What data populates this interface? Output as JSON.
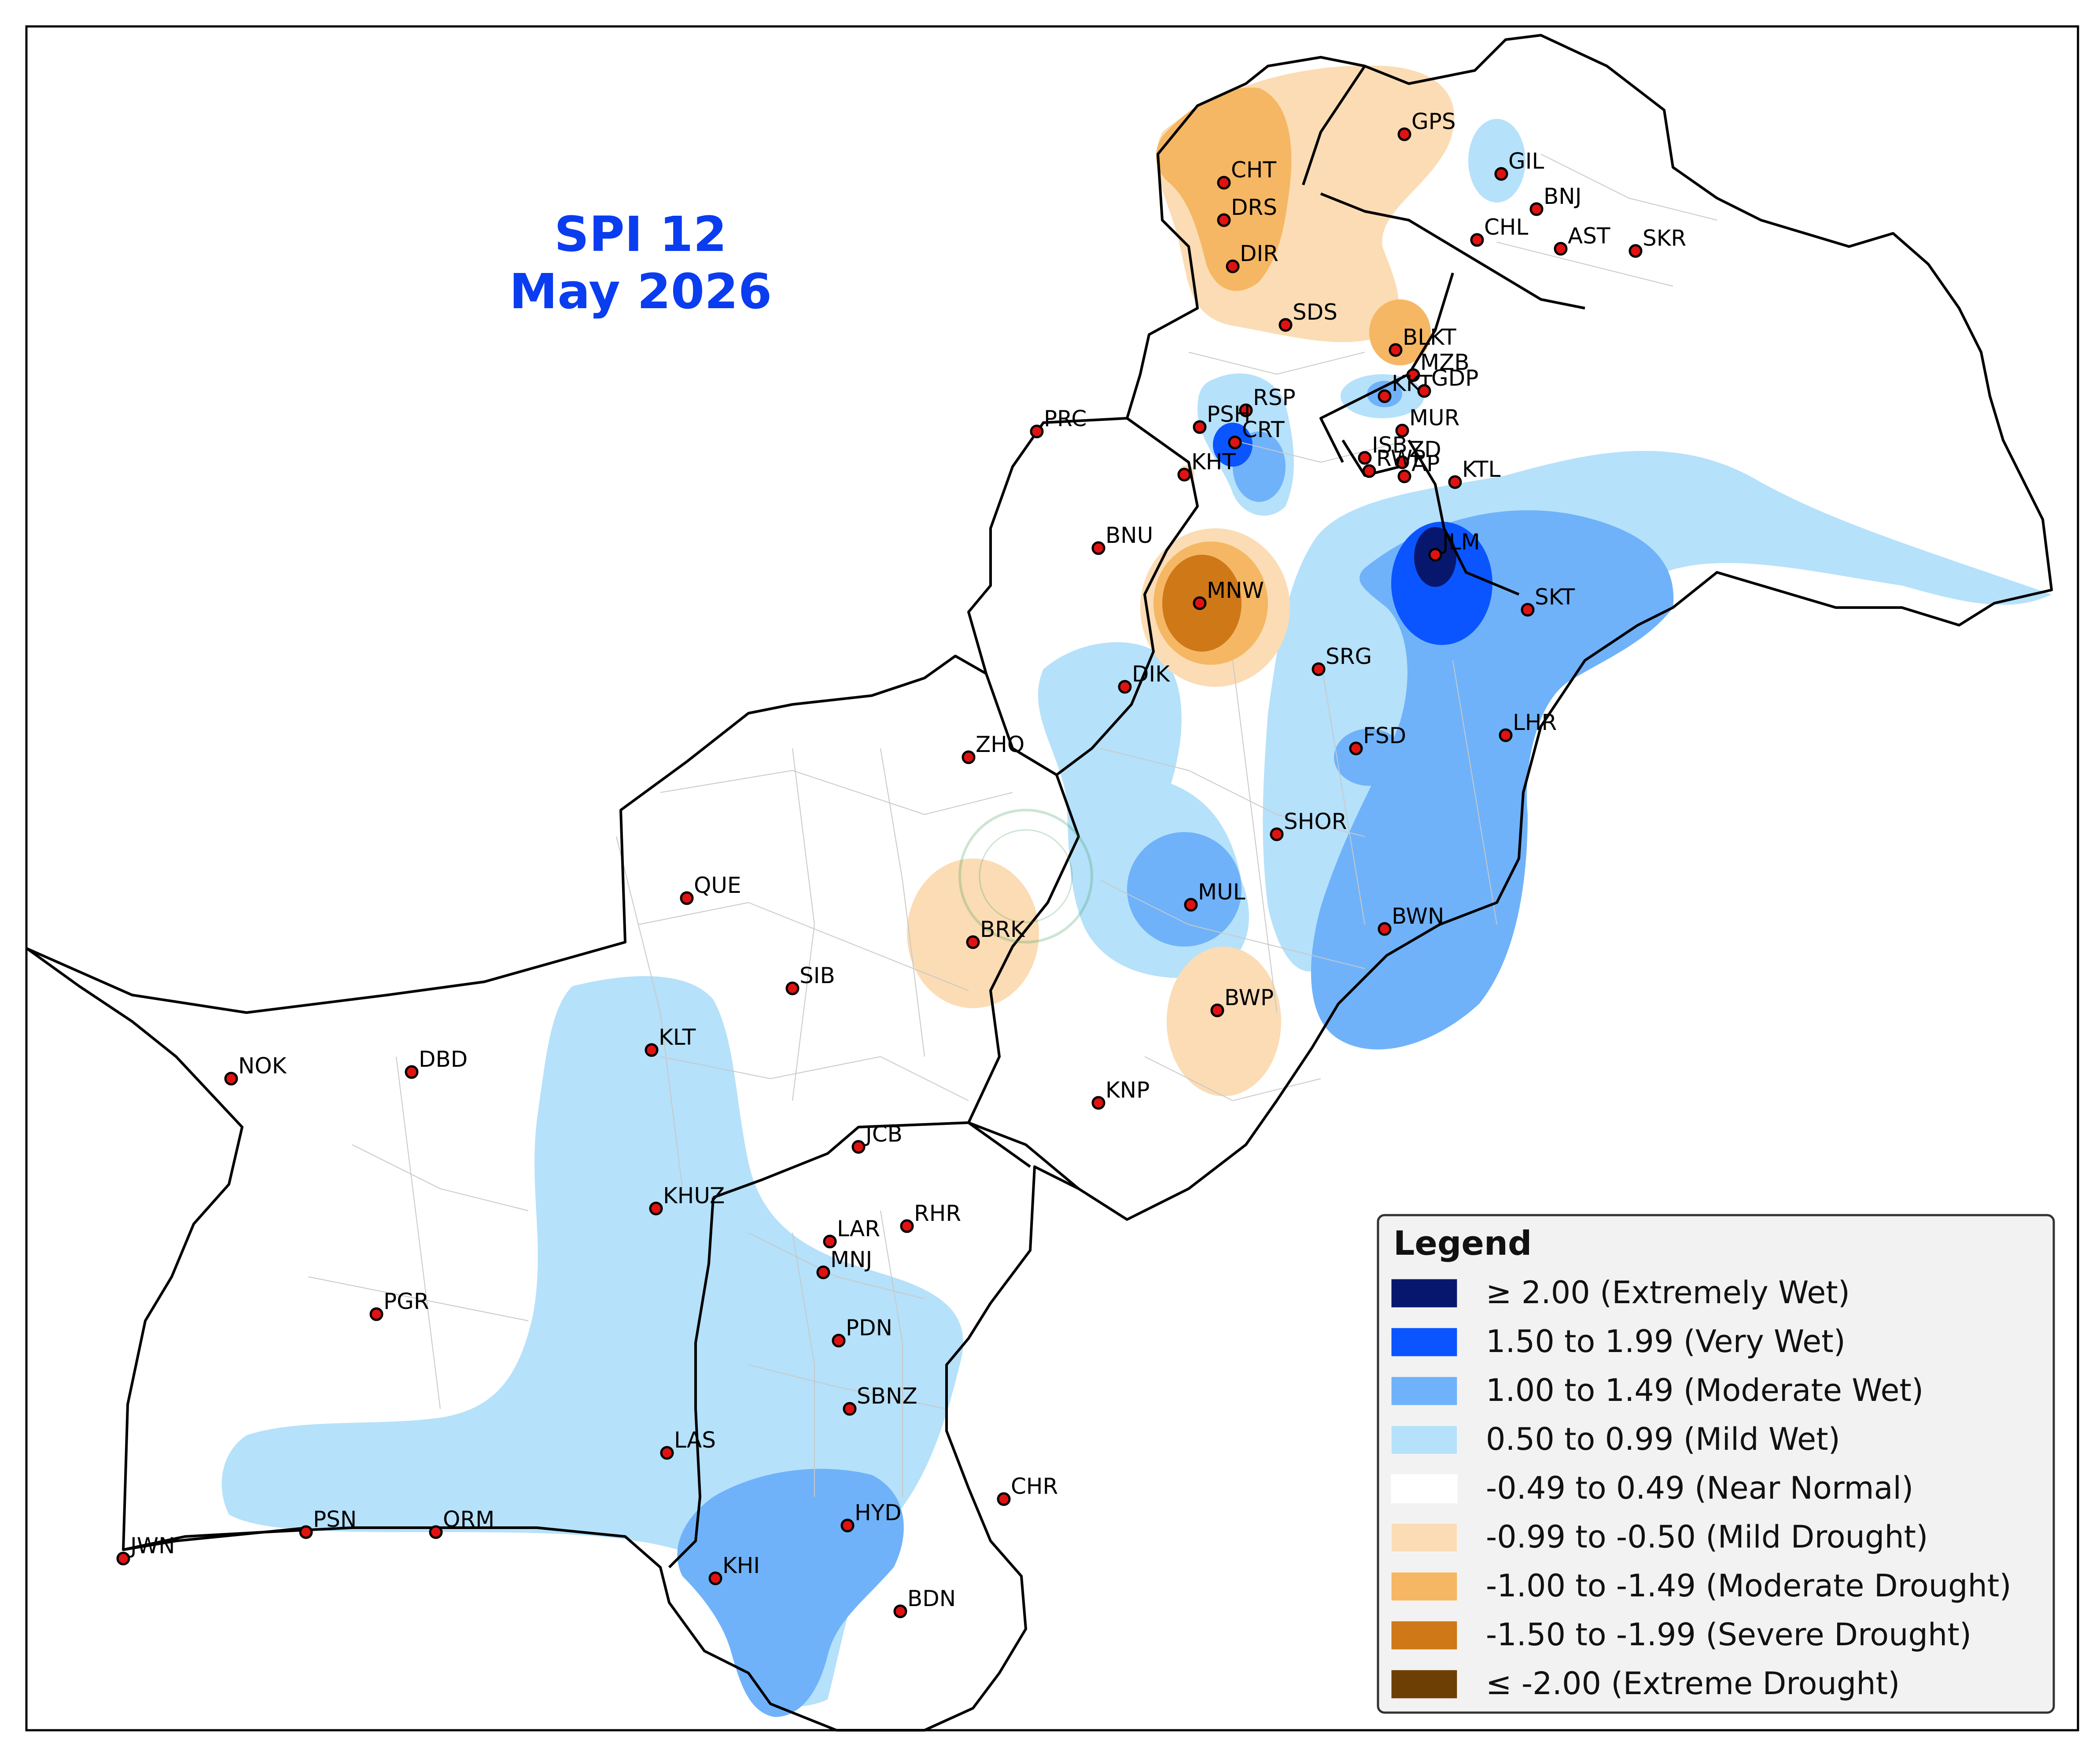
{
  "map": {
    "title": "SPI 12",
    "subtitle": "May 2026",
    "stations": [
      {
        "code": "GPS"
      },
      {
        "code": "GIL"
      },
      {
        "code": "CHT"
      },
      {
        "code": "BNJ"
      },
      {
        "code": "DRS"
      },
      {
        "code": "CHL"
      },
      {
        "code": "AST"
      },
      {
        "code": "SKR"
      },
      {
        "code": "DIR"
      },
      {
        "code": "SDS"
      },
      {
        "code": "BLKT"
      },
      {
        "code": "MZB"
      },
      {
        "code": "RSP"
      },
      {
        "code": "KKT"
      },
      {
        "code": "GDP"
      },
      {
        "code": "PRC"
      },
      {
        "code": "PSH"
      },
      {
        "code": "MUR"
      },
      {
        "code": "CRT"
      },
      {
        "code": "ISB"
      },
      {
        "code": "ZD"
      },
      {
        "code": "KHT"
      },
      {
        "code": "RWP"
      },
      {
        "code": "AP"
      },
      {
        "code": "KTL"
      },
      {
        "code": "BNU"
      },
      {
        "code": "JLM"
      },
      {
        "code": "MNW"
      },
      {
        "code": "SKT"
      },
      {
        "code": "SRG"
      },
      {
        "code": "DIK"
      },
      {
        "code": "LHR"
      },
      {
        "code": "ZHO"
      },
      {
        "code": "FSD"
      },
      {
        "code": "SHOR"
      },
      {
        "code": "QUE"
      },
      {
        "code": "MUL"
      },
      {
        "code": "BRK"
      },
      {
        "code": "BWN"
      },
      {
        "code": "SIB"
      },
      {
        "code": "BWP"
      },
      {
        "code": "KLT"
      },
      {
        "code": "NOK"
      },
      {
        "code": "DBD"
      },
      {
        "code": "KNP"
      },
      {
        "code": "JCB"
      },
      {
        "code": "KHUZ"
      },
      {
        "code": "RHR"
      },
      {
        "code": "LAR"
      },
      {
        "code": "MNJ"
      },
      {
        "code": "PGR"
      },
      {
        "code": "PDN"
      },
      {
        "code": "SBNZ"
      },
      {
        "code": "LAS"
      },
      {
        "code": "CHR"
      },
      {
        "code": "PSN"
      },
      {
        "code": "ORM"
      },
      {
        "code": "HYD"
      },
      {
        "code": "JWN"
      },
      {
        "code": "KHI"
      },
      {
        "code": "BDN"
      }
    ]
  },
  "legend": {
    "title": "Legend",
    "items": [
      {
        "label": "≥ 2.00 (Extremely Wet)",
        "color": "#08176e"
      },
      {
        "label": "1.50 to 1.99 (Very Wet)",
        "color": "#0a55ff"
      },
      {
        "label": "1.00 to 1.49 (Moderate Wet)",
        "color": "#6fb2fa"
      },
      {
        "label": "0.50 to 0.99 (Mild Wet)",
        "color": "#b5e1fa"
      },
      {
        "label": "-0.49 to 0.49 (Near Normal)",
        "color": "#ffffff"
      },
      {
        "label": "-0.99 to -0.50 (Mild Drought)",
        "color": "#fbdcb4"
      },
      {
        "label": "-1.00 to -1.49 (Moderate Drought)",
        "color": "#f5b763"
      },
      {
        "label": "-1.50 to -1.99 (Severe Drought)",
        "color": "#cf7818"
      },
      {
        "label": "≤ -2.00 (Extreme Drought)",
        "color": "#6e3f05"
      }
    ]
  }
}
